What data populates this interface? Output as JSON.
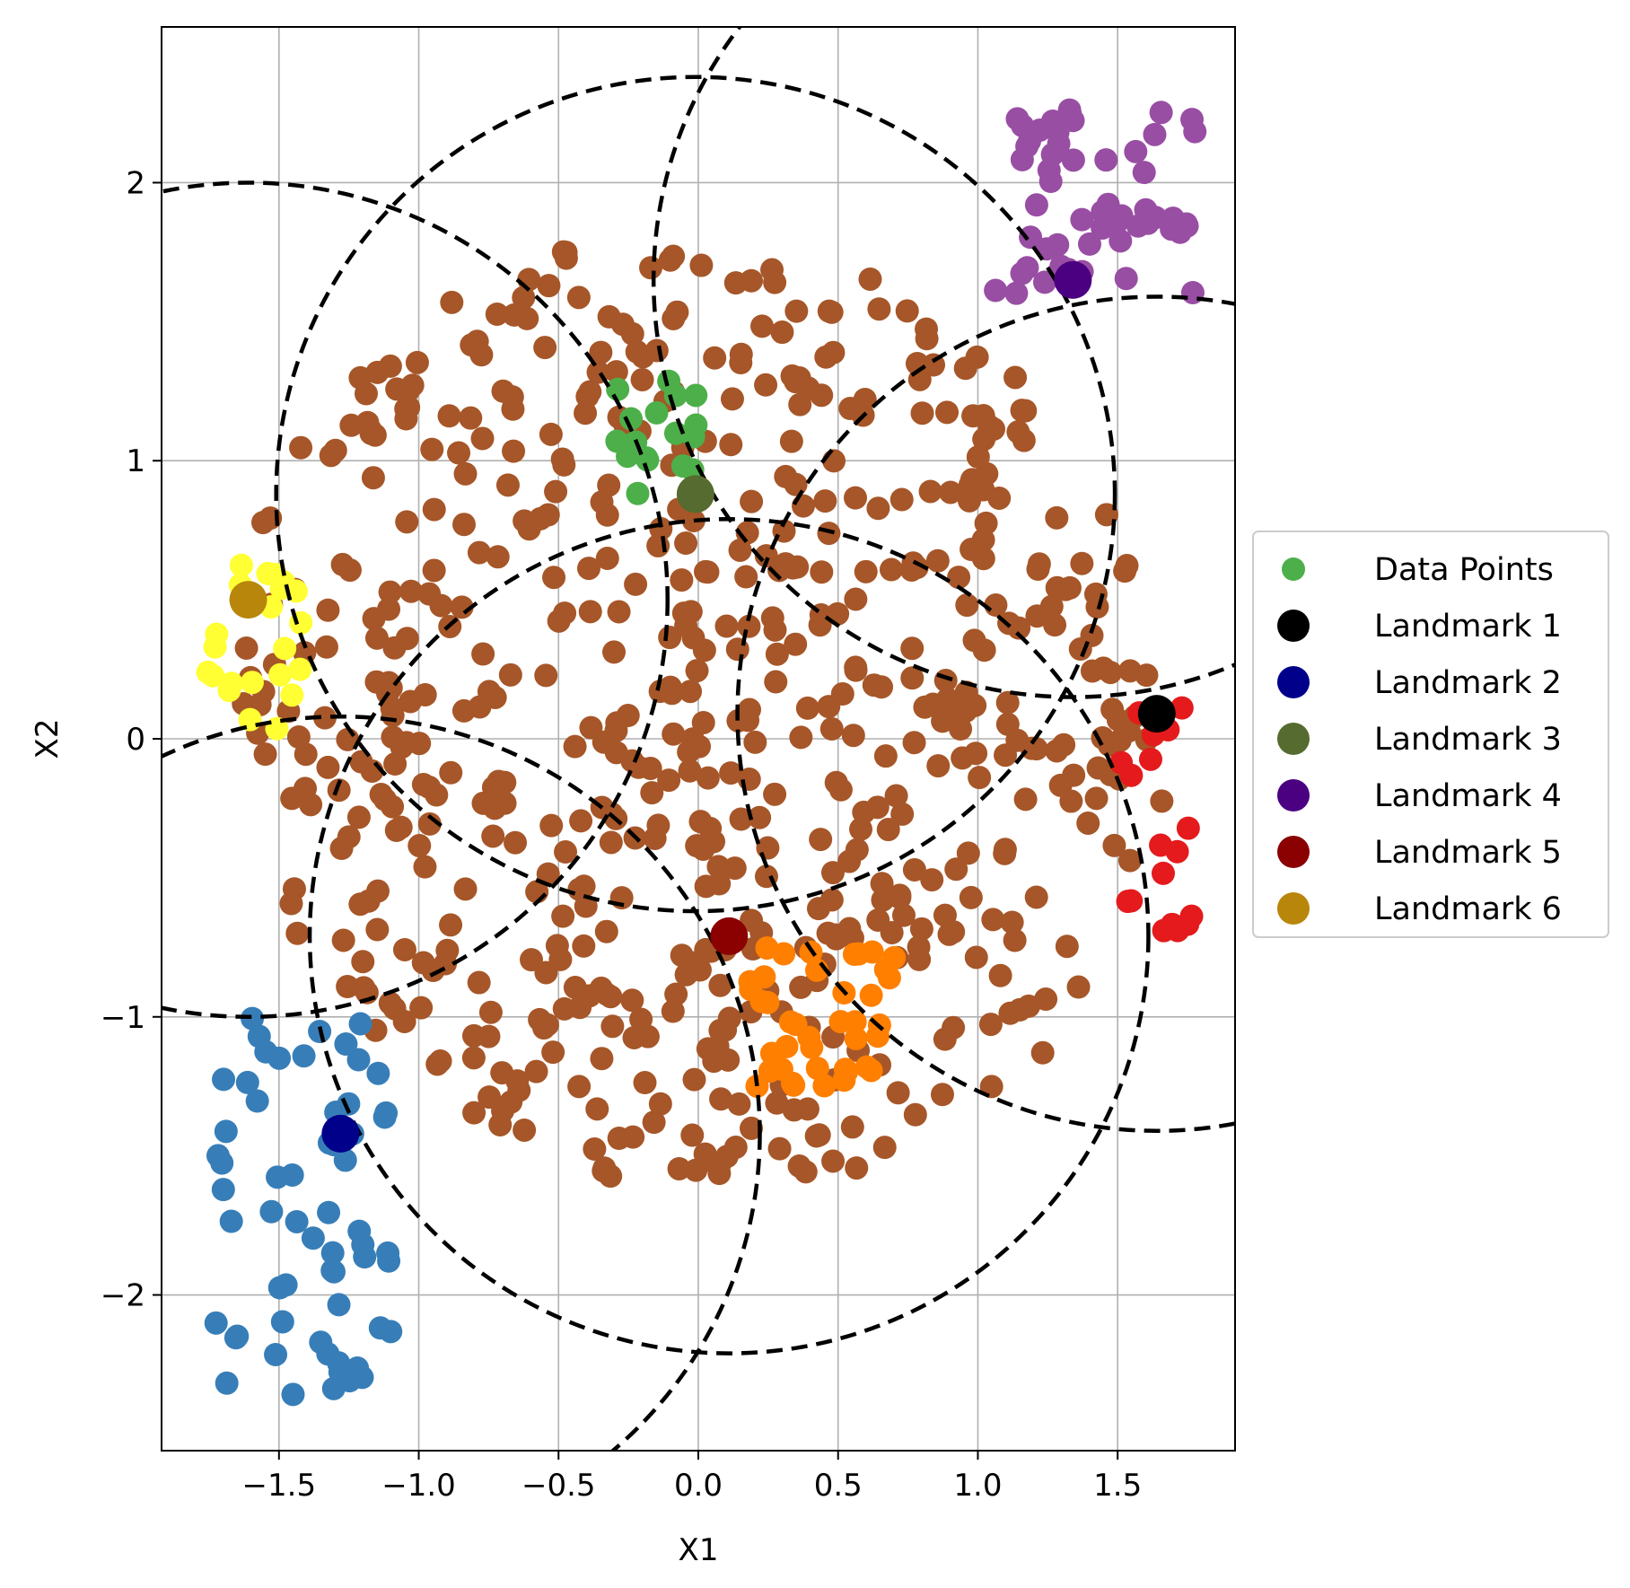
{
  "chart_data": {
    "type": "scatter",
    "title": "",
    "xlabel": "X1",
    "ylabel": "X2",
    "xlim": [
      -1.92,
      1.92
    ],
    "ylim": [
      -2.56,
      2.56
    ],
    "xticks": [
      -1.5,
      -1.0,
      -0.5,
      0.0,
      0.5,
      1.0,
      1.5
    ],
    "xtick_labels": [
      "−1.5",
      "−1.0",
      "−0.5",
      "0.0",
      "0.5",
      "1.0",
      "1.5"
    ],
    "yticks": [
      -2,
      -1,
      0,
      1,
      2
    ],
    "ytick_labels": [
      "−2",
      "−1",
      "0",
      "1",
      "2"
    ],
    "grid": true,
    "legend_position": "outside-right",
    "legend_entries": [
      "Data Points",
      "Landmark 1",
      "Landmark 2",
      "Landmark 3",
      "Landmark 4",
      "Landmark 5",
      "Landmark 6"
    ],
    "legend_colors": [
      "#4daf4a",
      "#000000",
      "#00008b",
      "#556b2f",
      "#4b0082",
      "#8b0000",
      "#b8860b"
    ],
    "landmarks": [
      {
        "x": 1.64,
        "y": 0.09,
        "color": "#000000"
      },
      {
        "x": -1.28,
        "y": -1.42,
        "color": "#00008b"
      },
      {
        "x": -0.01,
        "y": 0.88,
        "color": "#556b2f"
      },
      {
        "x": 1.34,
        "y": 1.65,
        "color": "#4b0082"
      },
      {
        "x": 0.11,
        "y": -0.71,
        "color": "#8b0000"
      },
      {
        "x": -1.61,
        "y": 0.5,
        "color": "#b8860b"
      }
    ],
    "circles": [
      {
        "cx": 0.11,
        "cy": -0.71,
        "r": 1.5
      },
      {
        "cx": 1.64,
        "cy": 0.09,
        "r": 1.5
      },
      {
        "cx": -1.61,
        "cy": 0.5,
        "r": 1.5
      },
      {
        "cx": -0.01,
        "cy": 0.88,
        "r": 1.5
      },
      {
        "cx": 1.34,
        "cy": 1.65,
        "r": 1.5
      },
      {
        "cx": -1.28,
        "cy": -1.42,
        "r": 1.5
      }
    ],
    "clusters": [
      {
        "color": "#a65628",
        "shape": "ellipse",
        "cx": 0.0,
        "cy": 0.1,
        "rx": 1.65,
        "ry": 1.75,
        "rot": 30,
        "count": 640
      },
      {
        "color": "#377eb8",
        "shape": "box",
        "x0": -1.78,
        "x1": -1.1,
        "y0": -2.36,
        "y1": -1.0,
        "count": 60
      },
      {
        "color": "#ffff33",
        "shape": "box",
        "x0": -1.76,
        "x1": -1.42,
        "y0": 0.02,
        "y1": 0.72,
        "count": 22
      },
      {
        "color": "#984ea3",
        "shape": "box",
        "x0": 1.06,
        "x1": 1.78,
        "y0": 1.6,
        "y1": 2.32,
        "count": 55
      },
      {
        "color": "#e41a1c",
        "shape": "box",
        "x0": 1.5,
        "x1": 1.78,
        "y0": -0.7,
        "y1": 0.12,
        "count": 18
      },
      {
        "color": "#ff7f00",
        "shape": "box",
        "x0": 0.15,
        "x1": 0.72,
        "y0": -1.25,
        "y1": -0.75,
        "count": 40
      },
      {
        "color": "#4daf4a",
        "shape": "box",
        "x0": -0.3,
        "x1": 0.0,
        "y0": 0.82,
        "y1": 1.32,
        "count": 18
      }
    ]
  }
}
